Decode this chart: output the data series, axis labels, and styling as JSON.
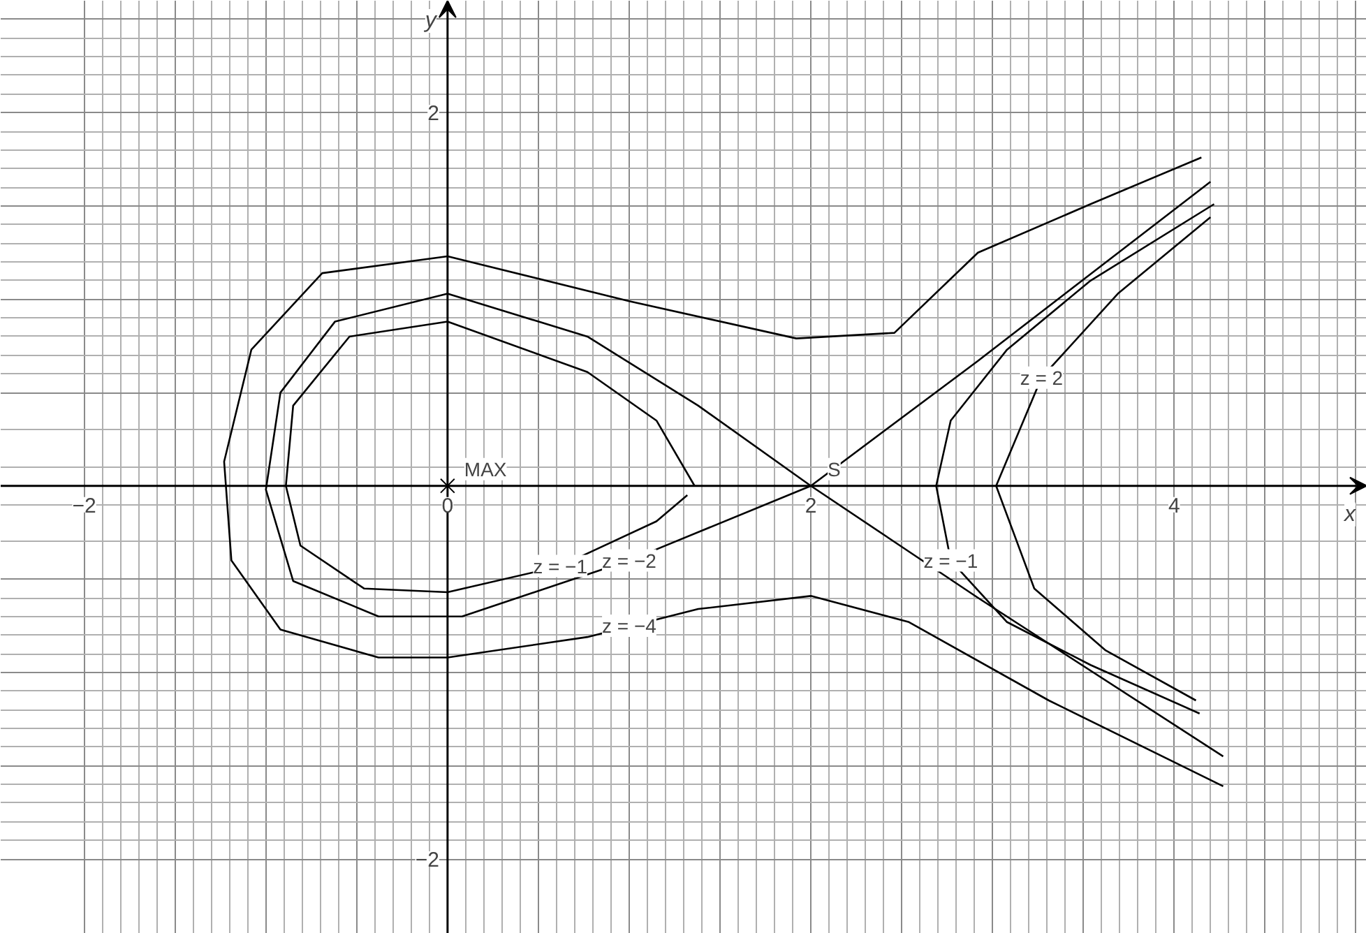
{
  "chart_data": {
    "type": "line",
    "xlabel": "x",
    "ylabel": "y",
    "xlim": [
      -2.46,
      5.06
    ],
    "ylim": [
      -2.4,
      2.6
    ],
    "xticks": [
      {
        "value": -2,
        "label": "−2"
      },
      {
        "value": -1.5,
        "label": null
      },
      {
        "value": -1,
        "label": null
      },
      {
        "value": -0.5,
        "label": null
      },
      {
        "value": 0,
        "label": "0"
      },
      {
        "value": 0.5,
        "label": null
      },
      {
        "value": 1,
        "label": null
      },
      {
        "value": 1.5,
        "label": null
      },
      {
        "value": 2,
        "label": "2"
      },
      {
        "value": 2.5,
        "label": null
      },
      {
        "value": 3,
        "label": null
      },
      {
        "value": 3.5,
        "label": null
      },
      {
        "value": 4,
        "label": "4"
      },
      {
        "value": 4.5,
        "label": null
      },
      {
        "value": 5,
        "label": null
      }
    ],
    "yticks": [
      {
        "value": -2,
        "label": "−2"
      },
      {
        "value": -1.5,
        "label": null
      },
      {
        "value": -1,
        "label": null
      },
      {
        "value": -0.5,
        "label": null
      },
      {
        "value": 0.5,
        "label": null
      },
      {
        "value": 1,
        "label": null
      },
      {
        "value": 1.5,
        "label": null
      },
      {
        "value": 2,
        "label": "2"
      },
      {
        "value": 2.5,
        "label": null
      }
    ],
    "grid": true,
    "marker": "none",
    "line_style": "solid",
    "series": [
      {
        "color": "#000000",
        "x": [
          4.15,
          3.54,
          2.92,
          2.46,
          1.92,
          1.0,
          0,
          -0.69,
          -1.08,
          -1.23,
          -1.19,
          -0.92,
          -0.38,
          0,
          0.77,
          1.38,
          2.0,
          2.54,
          3.31,
          4.27
        ],
        "values": [
          1.76,
          1.51,
          1.25,
          0.82,
          0.79,
          0.99,
          1.23,
          1.14,
          0.73,
          0.13,
          -0.4,
          -0.77,
          -0.92,
          -0.92,
          -0.81,
          -0.66,
          -0.59,
          -0.73,
          -1.15,
          -1.61
        ]
      },
      {
        "color": "#000000",
        "x": [
          4.2,
          2.92,
          2.0,
          1.0,
          0.08,
          -0.38,
          -0.85,
          -1.0,
          -0.92,
          -0.62,
          0,
          0.77,
          1.38,
          2.0,
          2.92,
          4.27
        ],
        "values": [
          1.63,
          0.67,
          0,
          -0.4,
          -0.7,
          -0.7,
          -0.51,
          -0.02,
          0.5,
          0.88,
          1.03,
          0.8,
          0.43,
          0,
          -0.6,
          -1.45
        ]
      },
      {
        "color": "#000000",
        "x": [
          4.22,
          3.54,
          3.08,
          2.77,
          2.69,
          2.77,
          3.08,
          3.54,
          4.14
        ],
        "values": [
          1.51,
          1.1,
          0.73,
          0.35,
          0,
          -0.4,
          -0.73,
          -0.96,
          -1.22
        ]
      },
      {
        "color": "#000000",
        "x": [
          4.2,
          3.69,
          3.27,
          3.02,
          3.23,
          3.62,
          4.12
        ],
        "values": [
          1.44,
          1.03,
          0.58,
          0,
          -0.55,
          -0.88,
          -1.15
        ]
      },
      {
        "color": "#000000",
        "x": [
          1.36,
          1.15,
          0.77,
          0,
          -0.54,
          -0.85,
          -0.89,
          -0.81,
          -0.46,
          0,
          0.62,
          1.15,
          1.32
        ],
        "values": [
          0,
          0.35,
          0.61,
          0.88,
          0.8,
          0.43,
          0,
          -0.32,
          -0.55,
          -0.57,
          -0.43,
          -0.19,
          -0.05
        ]
      },
      {
        "type": "scatter",
        "marker": "cross",
        "color": "#000000",
        "x": [
          0
        ],
        "values": [
          0
        ]
      }
    ],
    "annotations": [
      {
        "text": "MAX",
        "x": 0,
        "y": 0
      },
      {
        "text": "S",
        "x": 2,
        "y": 0
      },
      {
        "text": "z = −1",
        "x": 0.62,
        "y": -0.43
      },
      {
        "text": "z = −2",
        "x": 1.0,
        "y": -0.4
      },
      {
        "text": "z = −4",
        "x": 1.0,
        "y": -0.75
      },
      {
        "text": "z = 2",
        "x": 3.27,
        "y": 0.58
      },
      {
        "text": "z = −1",
        "x": 2.77,
        "y": -0.4
      }
    ]
  }
}
